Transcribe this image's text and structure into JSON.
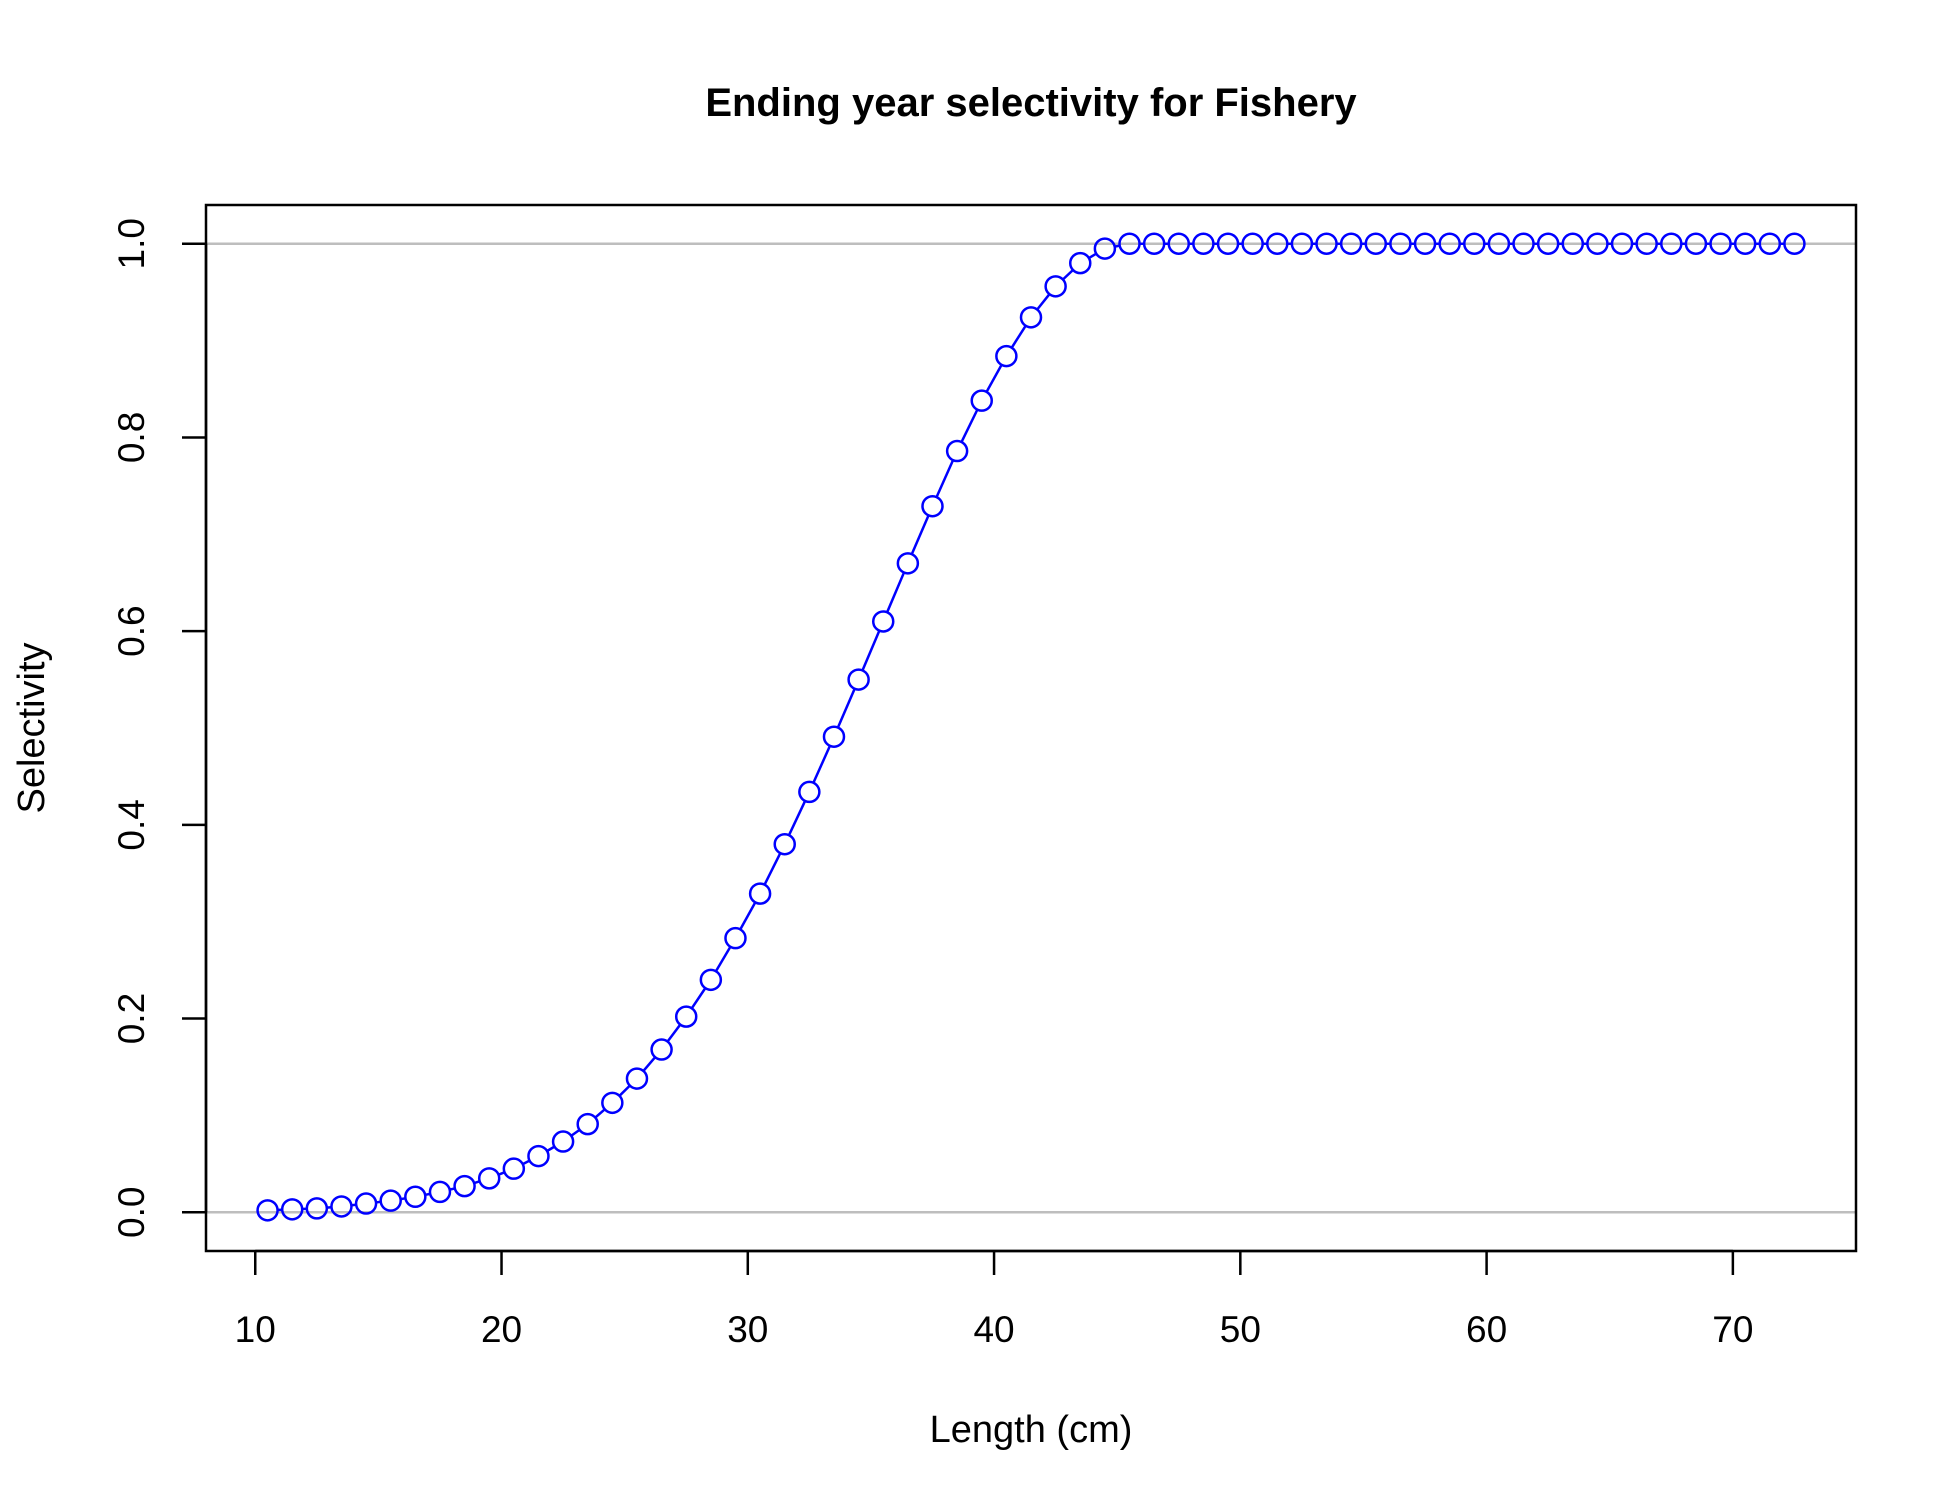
{
  "colors": {
    "series": "#0000ff",
    "reference_lines": "#bebebe",
    "axis": "#000000",
    "background": "#ffffff"
  },
  "chart_data": {
    "type": "line",
    "title": "Ending year selectivity for Fishery",
    "xlabel": "Length (cm)",
    "ylabel": "Selectivity",
    "xlim": [
      8,
      75
    ],
    "ylim": [
      -0.04,
      1.04
    ],
    "x_ticks": [
      10,
      20,
      30,
      40,
      50,
      60,
      70
    ],
    "x_tick_labels": [
      "10",
      "20",
      "30",
      "40",
      "50",
      "60",
      "70"
    ],
    "y_ticks": [
      0.0,
      0.2,
      0.4,
      0.6,
      0.8,
      1.0
    ],
    "y_tick_labels": [
      "0.0",
      "0.2",
      "0.4",
      "0.6",
      "0.8",
      "1.0"
    ],
    "reference_lines_y": [
      0,
      1
    ],
    "grid": false,
    "marker": "open-circle",
    "series": [
      {
        "name": "Selectivity",
        "x": [
          10.5,
          11.5,
          12.5,
          13.5,
          14.5,
          15.5,
          16.5,
          17.5,
          18.5,
          19.5,
          20.5,
          21.5,
          22.5,
          23.5,
          24.5,
          25.5,
          26.5,
          27.5,
          28.5,
          29.5,
          30.5,
          31.5,
          32.5,
          33.5,
          34.5,
          35.5,
          36.5,
          37.5,
          38.5,
          39.5,
          40.5,
          41.5,
          42.5,
          43.5,
          44.5,
          45.5,
          46.5,
          47.5,
          48.5,
          49.5,
          50.5,
          51.5,
          52.5,
          53.5,
          54.5,
          55.5,
          56.5,
          57.5,
          58.5,
          59.5,
          60.5,
          61.5,
          62.5,
          63.5,
          64.5,
          65.5,
          66.5,
          67.5,
          68.5,
          69.5,
          70.5,
          71.5,
          72.5
        ],
        "y": [
          0.002,
          0.003,
          0.004,
          0.006,
          0.009,
          0.012,
          0.016,
          0.021,
          0.027,
          0.035,
          0.045,
          0.058,
          0.073,
          0.091,
          0.113,
          0.138,
          0.168,
          0.202,
          0.24,
          0.283,
          0.329,
          0.38,
          0.434,
          0.491,
          0.55,
          0.61,
          0.67,
          0.729,
          0.786,
          0.838,
          0.884,
          0.924,
          0.956,
          0.98,
          0.995,
          1.0,
          1.0,
          1.0,
          1.0,
          1.0,
          1.0,
          1.0,
          1.0,
          1.0,
          1.0,
          1.0,
          1.0,
          1.0,
          1.0,
          1.0,
          1.0,
          1.0,
          1.0,
          1.0,
          1.0,
          1.0,
          1.0,
          1.0,
          1.0,
          1.0,
          1.0,
          1.0,
          1.0
        ]
      }
    ]
  }
}
